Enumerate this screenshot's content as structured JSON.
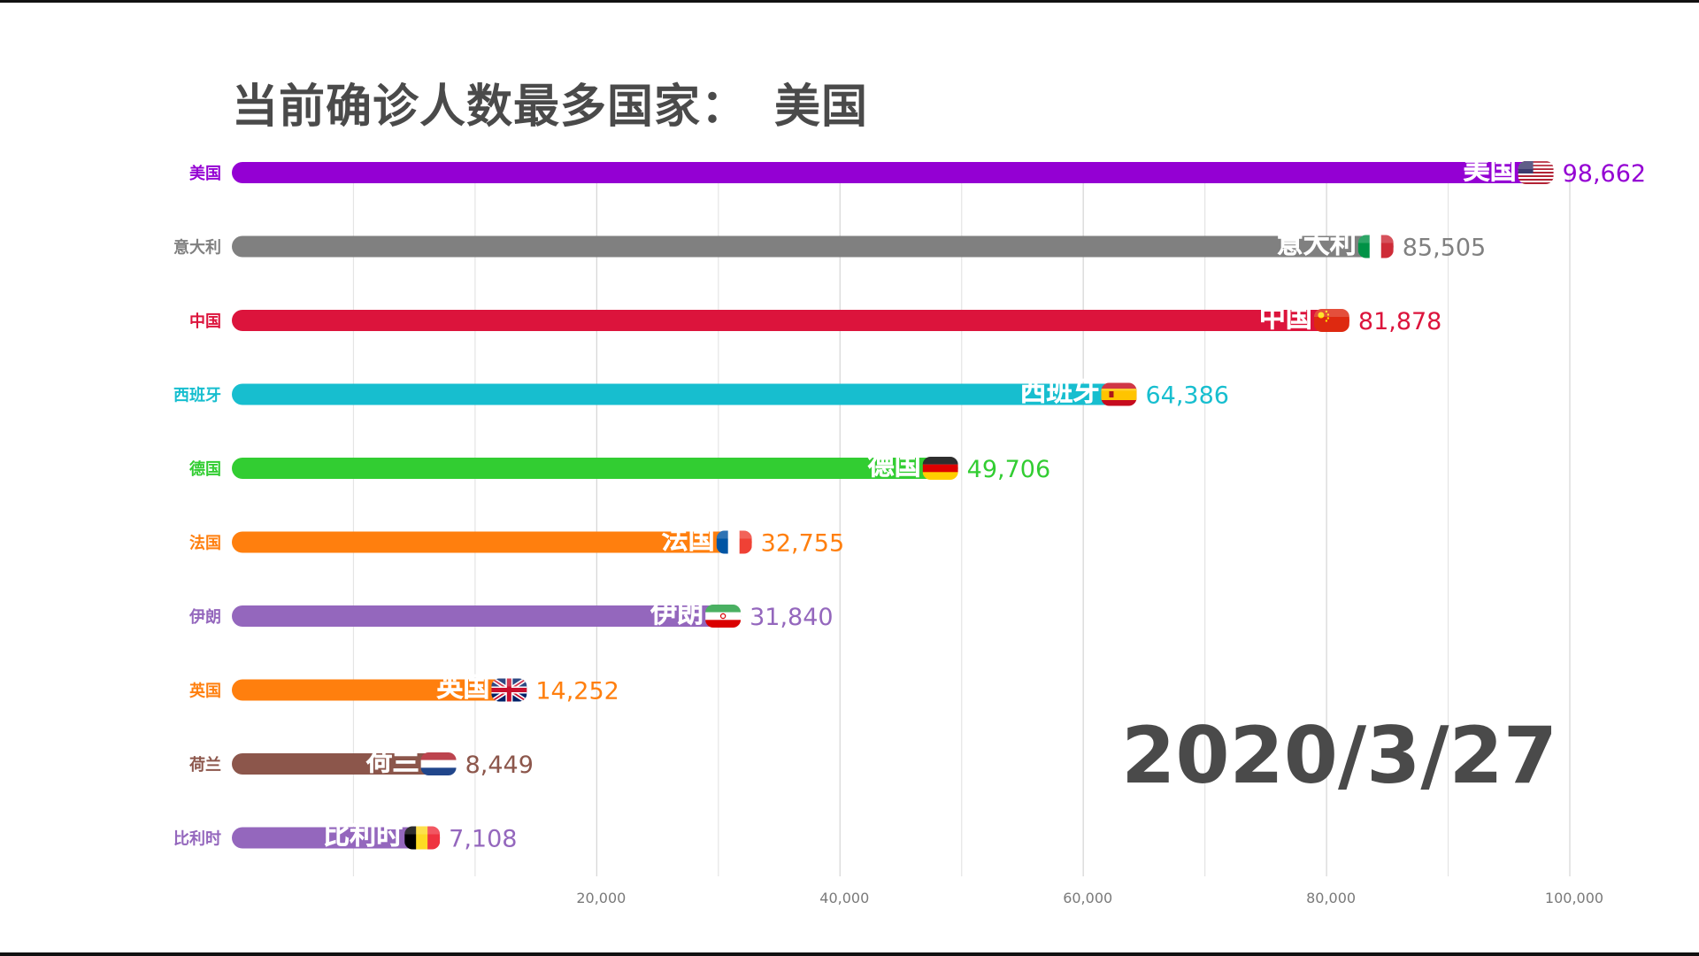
{
  "title": {
    "prefix": "当前确诊人数最多国家：",
    "leader": "美国"
  },
  "date": "2020/3/27",
  "chart_data": {
    "type": "bar",
    "orientation": "horizontal",
    "categories": [
      "美国",
      "意大利",
      "中国",
      "西班牙",
      "德国",
      "法国",
      "伊朗",
      "英国",
      "荷兰",
      "比利时"
    ],
    "values": [
      98662,
      85505,
      81878,
      64386,
      49706,
      32755,
      31840,
      14252,
      8449,
      7108
    ],
    "value_labels": [
      "98,662",
      "85,505",
      "81,878",
      "64,386",
      "49,706",
      "32,755",
      "31,840",
      "14,252",
      "8,449",
      "7,108"
    ],
    "colors": [
      "#9400d3",
      "#808080",
      "#dc143c",
      "#17becf",
      "#32cd32",
      "#ff7f0e",
      "#9467bd",
      "#ff7f0e",
      "#8c564b",
      "#9467bd"
    ],
    "flag_icons": [
      "us-flag-icon",
      "it-flag-icon",
      "cn-flag-icon",
      "es-flag-icon",
      "de-flag-icon",
      "fr-flag-icon",
      "ir-flag-icon",
      "gb-flag-icon",
      "nl-flag-icon",
      "be-flag-icon"
    ],
    "x_ticks": [
      20000,
      40000,
      60000,
      80000,
      100000
    ],
    "x_tick_labels": [
      "20,000",
      "40,000",
      "60,000",
      "80,000",
      "100,000"
    ],
    "xlim": [
      -10000,
      100000
    ],
    "grid": true
  }
}
